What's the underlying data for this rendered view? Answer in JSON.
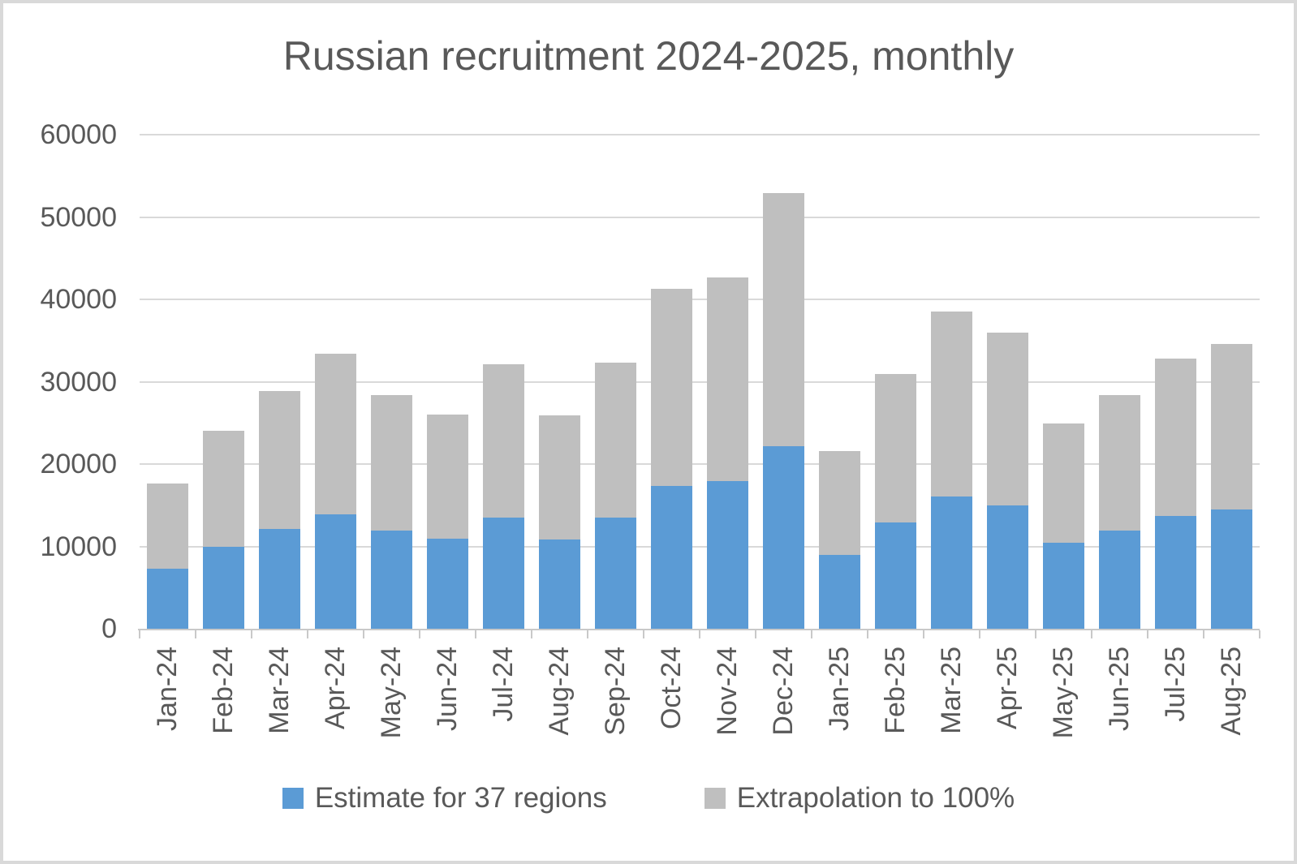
{
  "chart_data": {
    "type": "bar",
    "stacked": true,
    "title": "Russian recruitment 2024-2025, monthly",
    "xlabel": "",
    "ylabel": "",
    "ylim": [
      0,
      60000
    ],
    "y_ticks": [
      0,
      10000,
      20000,
      30000,
      40000,
      50000,
      60000
    ],
    "grid": true,
    "legend_position": "bottom",
    "categories": [
      "Jan-24",
      "Feb-24",
      "Mar-24",
      "Apr-24",
      "May-24",
      "Jun-24",
      "Jul-24",
      "Aug-24",
      "Sep-24",
      "Oct-24",
      "Nov-24",
      "Dec-24",
      "Jan-25",
      "Feb-25",
      "Mar-25",
      "Apr-25",
      "May-25",
      "Jun-25",
      "Jul-25",
      "Aug-25"
    ],
    "series": [
      {
        "name": "Estimate for 37 regions",
        "color": "#5B9BD5",
        "values": [
          7300,
          10000,
          12100,
          13900,
          11900,
          10900,
          13500,
          10800,
          13500,
          17300,
          17900,
          22200,
          9000,
          12900,
          16100,
          15000,
          10400,
          11900,
          13700,
          14500
        ]
      },
      {
        "name": "Extrapolation to 100%",
        "color": "#BFBFBF",
        "values": [
          10300,
          14000,
          16800,
          19500,
          16500,
          15100,
          18600,
          15100,
          18800,
          24000,
          24800,
          30700,
          12600,
          18000,
          22400,
          21000,
          14500,
          16500,
          19100,
          20100
        ]
      }
    ],
    "stack_totals": [
      17600,
      24000,
      28900,
      33400,
      28400,
      26000,
      32100,
      25900,
      32300,
      41300,
      42700,
      52900,
      21600,
      30900,
      38500,
      36000,
      24900,
      28400,
      32800,
      34600
    ]
  },
  "colors": {
    "text": "#595959",
    "gridline": "#D9D9D9",
    "axis": "#C9C9C9",
    "canvas_border": "#D9D9D9",
    "background": "#FFFFFF"
  }
}
